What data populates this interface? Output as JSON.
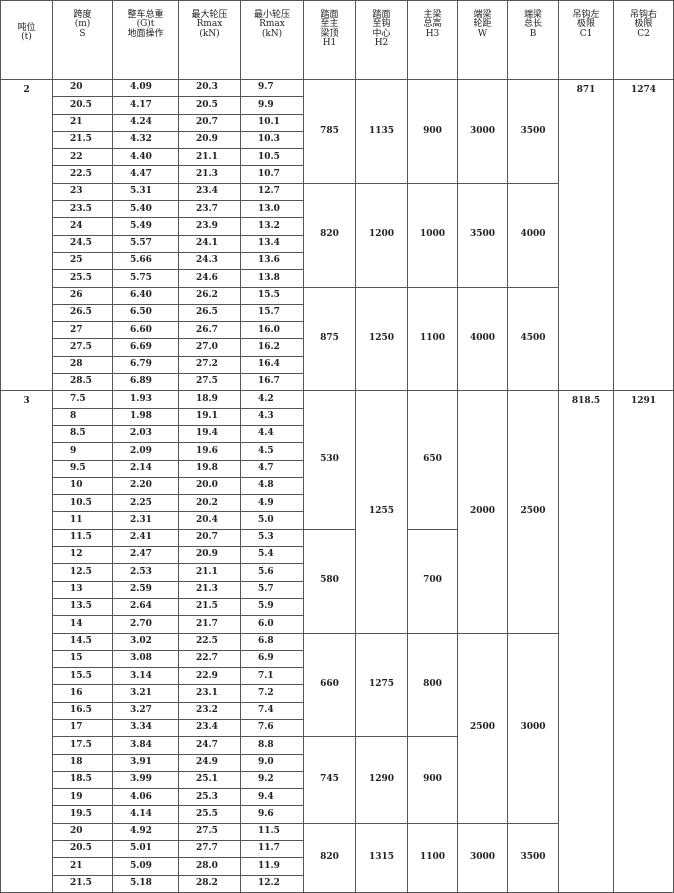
{
  "table": {
    "header": [
      "吨位\n(t)",
      "跨度\n(m)\nS",
      "整车总重\n(G)t\n地面操作",
      "最大轮压\nRmax\n(kN)",
      "最小轮压\nRmax\n(kN)",
      "踏面\n至主\n梁顶\nH1",
      "踏面\n至钩\n中心\nH2",
      "主梁\n总高\nH3",
      "端梁\n轮距\nW",
      "端梁\n总长\nB",
      "吊钩左\n极限\nC1",
      "吊钩右\n极限\nC2"
    ],
    "groups": [
      {
        "tonnage": "2",
        "rows": [
          [
            "20",
            "4.09",
            "20.3",
            "9.7",
            "785",
            "1135",
            "900",
            "3000",
            "3500",
            "871",
            "1274"
          ],
          [
            "20.5",
            "4.17",
            "20.5",
            "9.9",
            null,
            null,
            null,
            null,
            null,
            null,
            null
          ],
          [
            "21",
            "4.24",
            "20.7",
            "10.1",
            null,
            null,
            null,
            null,
            null,
            null,
            null
          ],
          [
            "21.5",
            "4.32",
            "20.9",
            "10.3",
            null,
            null,
            null,
            null,
            null,
            null,
            null
          ],
          [
            "22",
            "4.40",
            "21.1",
            "10.5",
            null,
            null,
            null,
            null,
            null,
            null,
            null
          ],
          [
            "22.5",
            "4.47",
            "21.3",
            "10.7",
            null,
            null,
            null,
            null,
            null,
            null,
            null
          ],
          [
            "23",
            "5.31",
            "23.4",
            "12.7",
            "820",
            "1200",
            "1000",
            "3500",
            "4000",
            null,
            null
          ],
          [
            "23.5",
            "5.40",
            "23.7",
            "13.0",
            null,
            null,
            null,
            null,
            null,
            null,
            null
          ],
          [
            "24",
            "5.49",
            "23.9",
            "13.2",
            null,
            null,
            null,
            null,
            null,
            null,
            null
          ],
          [
            "24.5",
            "5.57",
            "24.1",
            "13.4",
            null,
            null,
            null,
            null,
            null,
            null,
            null
          ],
          [
            "25",
            "5.66",
            "24.3",
            "13.6",
            null,
            null,
            null,
            null,
            null,
            null,
            null
          ],
          [
            "25.5",
            "5.75",
            "24.6",
            "13.8",
            null,
            null,
            null,
            null,
            null,
            null,
            null
          ],
          [
            "26",
            "6.40",
            "26.2",
            "15.5",
            "875",
            "1250",
            "1100",
            "4000",
            "4500",
            null,
            null
          ],
          [
            "26.5",
            "6.50",
            "26.5",
            "15.7",
            null,
            null,
            null,
            null,
            null,
            null,
            null
          ],
          [
            "27",
            "6.60",
            "26.7",
            "16.0",
            null,
            null,
            null,
            null,
            null,
            null,
            null
          ],
          [
            "27.5",
            "6.69",
            "27.0",
            "16.2",
            null,
            null,
            null,
            null,
            null,
            null,
            null
          ],
          [
            "28",
            "6.79",
            "27.2",
            "16.4",
            null,
            null,
            null,
            null,
            null,
            null,
            null
          ],
          [
            "28.5",
            "6.89",
            "27.5",
            "16.7",
            null,
            null,
            null,
            null,
            null,
            null,
            null
          ]
        ]
      },
      {
        "tonnage": "3",
        "rows": [
          [
            "7.5",
            "1.93",
            "18.9",
            "4.2",
            "530",
            "1255",
            "650",
            "2000",
            "2500",
            "818.5",
            "1291"
          ],
          [
            "8",
            "1.98",
            "19.1",
            "4.3",
            null,
            null,
            null,
            null,
            null,
            null,
            null
          ],
          [
            "8.5",
            "2.03",
            "19.4",
            "4.4",
            null,
            null,
            null,
            null,
            null,
            null,
            null
          ],
          [
            "9",
            "2.09",
            "19.6",
            "4.5",
            null,
            null,
            null,
            null,
            null,
            null,
            null
          ],
          [
            "9.5",
            "2.14",
            "19.8",
            "4.7",
            null,
            null,
            null,
            null,
            null,
            null,
            null
          ],
          [
            "10",
            "2.20",
            "20.0",
            "4.8",
            null,
            null,
            null,
            null,
            null,
            null,
            null
          ],
          [
            "10.5",
            "2.25",
            "20.2",
            "4.9",
            null,
            null,
            null,
            null,
            null,
            null,
            null
          ],
          [
            "11",
            "2.31",
            "20.4",
            "5.0",
            null,
            null,
            null,
            null,
            null,
            null,
            null
          ],
          [
            "11.5",
            "2.41",
            "20.7",
            "5.3",
            "580",
            null,
            "700",
            null,
            null,
            null,
            null
          ],
          [
            "12",
            "2.47",
            "20.9",
            "5.4",
            null,
            null,
            null,
            null,
            null,
            null,
            null
          ],
          [
            "12.5",
            "2.53",
            "21.1",
            "5.6",
            null,
            null,
            null,
            null,
            null,
            null,
            null
          ],
          [
            "13",
            "2.59",
            "21.3",
            "5.7",
            null,
            null,
            null,
            null,
            null,
            null,
            null
          ],
          [
            "13.5",
            "2.64",
            "21.5",
            "5.9",
            null,
            null,
            null,
            null,
            null,
            null,
            null
          ],
          [
            "14",
            "2.70",
            "21.7",
            "6.0",
            null,
            null,
            null,
            null,
            null,
            null,
            null
          ],
          [
            "14.5",
            "3.02",
            "22.5",
            "6.8",
            "660",
            "1275",
            "800",
            "2500",
            "3000",
            null,
            null
          ],
          [
            "15",
            "3.08",
            "22.7",
            "6.9",
            null,
            null,
            null,
            null,
            null,
            null,
            null
          ],
          [
            "15.5",
            "3.14",
            "22.9",
            "7.1",
            null,
            null,
            null,
            null,
            null,
            null,
            null
          ],
          [
            "16",
            "3.21",
            "23.1",
            "7.2",
            null,
            null,
            null,
            null,
            null,
            null,
            null
          ],
          [
            "16.5",
            "3.27",
            "23.2",
            "7.4",
            null,
            null,
            null,
            null,
            null,
            null,
            null
          ],
          [
            "17",
            "3.34",
            "23.4",
            "7.6",
            null,
            null,
            null,
            null,
            null,
            null,
            null
          ],
          [
            "17.5",
            "3.84",
            "24.7",
            "8.8",
            "745",
            "1290",
            "900",
            null,
            null,
            null,
            null
          ],
          [
            "18",
            "3.91",
            "24.9",
            "9.0",
            null,
            null,
            null,
            null,
            null,
            null,
            null
          ],
          [
            "18.5",
            "3.99",
            "25.1",
            "9.2",
            null,
            null,
            null,
            null,
            null,
            null,
            null
          ],
          [
            "19",
            "4.06",
            "25.3",
            "9.4",
            null,
            null,
            null,
            null,
            null,
            null,
            null
          ],
          [
            "19.5",
            "4.14",
            "25.5",
            "9.6",
            null,
            null,
            null,
            null,
            null,
            null,
            null
          ],
          [
            "20",
            "4.92",
            "27.5",
            "11.5",
            "820",
            "1315",
            "1100",
            "3000",
            "3500",
            null,
            null
          ],
          [
            "20.5",
            "5.01",
            "27.7",
            "11.7",
            null,
            null,
            null,
            null,
            null,
            null,
            null
          ],
          [
            "21",
            "5.09",
            "28.0",
            "11.9",
            null,
            null,
            null,
            null,
            null,
            null,
            null
          ],
          [
            "21.5",
            "5.18",
            "28.2",
            "12.2",
            null,
            null,
            null,
            null,
            null,
            null,
            null
          ]
        ]
      }
    ]
  }
}
